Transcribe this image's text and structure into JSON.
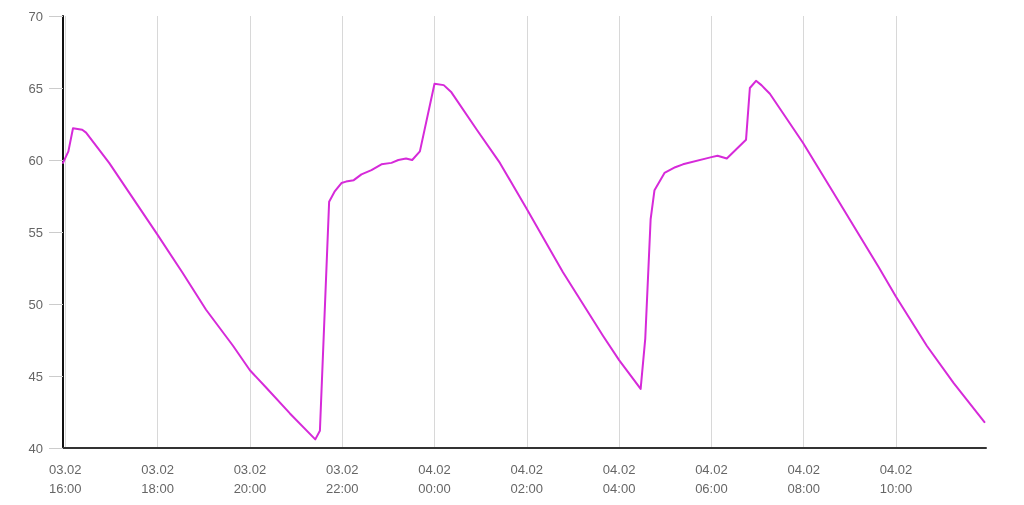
{
  "chart_data": {
    "type": "line",
    "x": [
      "--02-03T15:57",
      "--02-03T16:04",
      "--02-03T16:10",
      "--02-03T16:22",
      "--02-03T16:27",
      "--02-03T16:57",
      "--02-03T18:00",
      "--02-03T18:32",
      "--02-03T19:03",
      "--02-03T19:38",
      "--02-03T20:00",
      "--02-03T20:21",
      "--02-03T20:52",
      "--02-03T21:25",
      "--02-03T21:31",
      "--02-03T21:43",
      "--02-03T21:50",
      "--02-03T21:59",
      "--02-03T22:05",
      "--02-03T22:15",
      "--02-03T22:25",
      "--02-03T22:38",
      "--02-03T22:51",
      "--02-03T23:04",
      "--02-03T23:13",
      "--02-03T23:23",
      "--02-03T23:31",
      "--02-03T23:41",
      "--02-04T00:00",
      "--02-04T00:12",
      "--02-04T00:22",
      "--02-04T00:55",
      "--02-04T01:25",
      "--02-04T02:00",
      "--02-04T02:47",
      "--02-04T03:39",
      "--02-04T04:00",
      "--02-04T04:28",
      "--02-04T04:34",
      "--02-04T04:41",
      "--02-04T04:46",
      "--02-04T04:59",
      "--02-04T05:13",
      "--02-04T05:23",
      "--02-04T06:00",
      "--02-04T06:08",
      "--02-04T06:20",
      "--02-04T06:45",
      "--02-04T06:50",
      "--02-04T06:58",
      "--02-04T07:05",
      "--02-04T07:16",
      "--02-04T07:59",
      "--02-04T08:47",
      "--02-04T09:37",
      "--02-04T10:00",
      "--02-04T10:40",
      "--02-04T11:15",
      "--02-04T11:55"
    ],
    "series": [
      {
        "color": "#d62ad9",
        "values": [
          59.8,
          60.6,
          62.2,
          62.1,
          61.9,
          59.8,
          54.8,
          52.2,
          49.6,
          47.1,
          45.4,
          44.2,
          42.4,
          40.6,
          41.2,
          57.1,
          57.8,
          58.4,
          58.5,
          58.6,
          59.0,
          59.3,
          59.7,
          59.8,
          60.0,
          60.1,
          60.0,
          60.6,
          65.3,
          65.2,
          64.7,
          62.1,
          59.8,
          56.6,
          52.2,
          47.8,
          46.1,
          44.1,
          47.6,
          55.9,
          57.9,
          59.1,
          59.5,
          59.7,
          60.2,
          60.3,
          60.1,
          61.4,
          65.0,
          65.5,
          65.2,
          64.6,
          61.2,
          57.0,
          52.6,
          50.5,
          47.1,
          44.5,
          41.8
        ]
      }
    ],
    "xlim": [
      "--02-03T15:57",
      "--02-04T11:57"
    ],
    "xticks": [
      {
        "value": "--02-03T16:00",
        "label": "03.02\n16:00"
      },
      {
        "value": "--02-03T18:00",
        "label": "03.02\n18:00"
      },
      {
        "value": "--02-03T20:00",
        "label": "03.02\n20:00"
      },
      {
        "value": "--02-03T22:00",
        "label": "03.02\n22:00"
      },
      {
        "value": "--02-04T00:00",
        "label": "04.02\n00:00"
      },
      {
        "value": "--02-04T02:00",
        "label": "04.02\n02:00"
      },
      {
        "value": "--02-04T04:00",
        "label": "04.02\n04:00"
      },
      {
        "value": "--02-04T06:00",
        "label": "04.02\n06:00"
      },
      {
        "value": "--02-04T08:00",
        "label": "04.02\n08:00"
      },
      {
        "value": "--02-04T10:00",
        "label": "04.02\n10:00"
      }
    ],
    "ylim": [
      40,
      70
    ],
    "yticks": [
      40,
      45,
      50,
      55,
      60,
      65,
      70
    ],
    "grid": "x"
  }
}
